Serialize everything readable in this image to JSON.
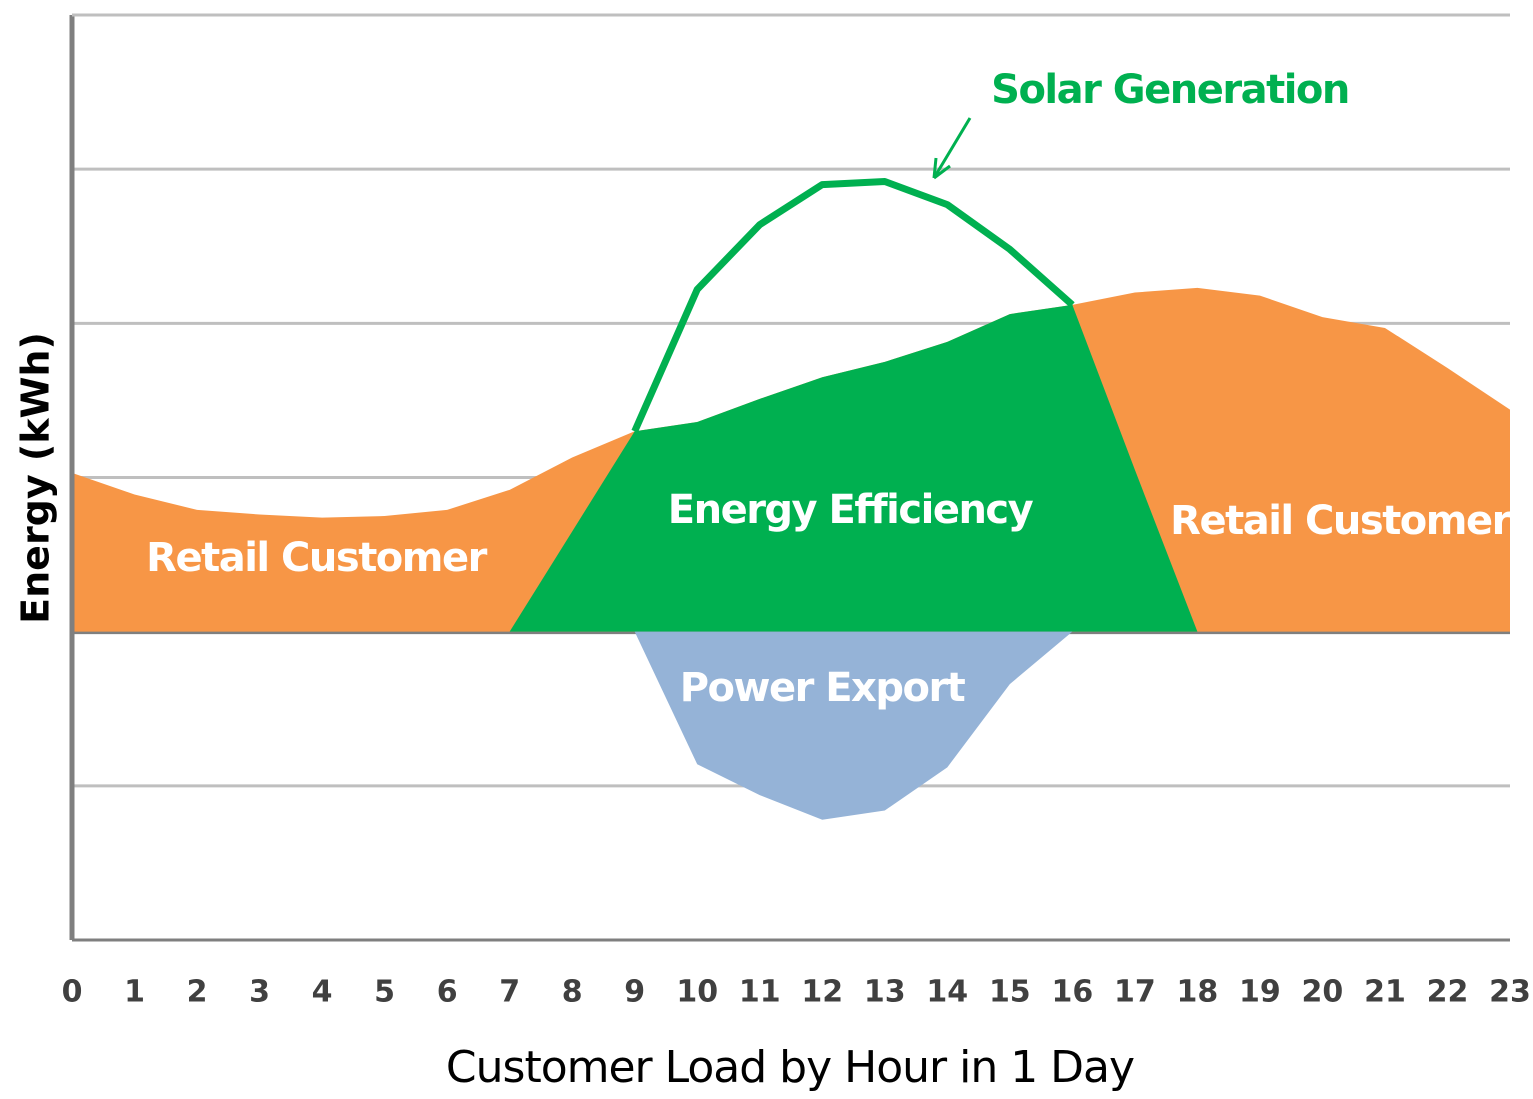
{
  "chart_data": {
    "type": "area",
    "x_label": "Customer Load by Hour in 1 Day",
    "y_label": "Energy (kWh)",
    "x": [
      0,
      1,
      2,
      3,
      4,
      5,
      6,
      7,
      8,
      9,
      10,
      11,
      12,
      13,
      14,
      15,
      16,
      17,
      18,
      19,
      20,
      21,
      22,
      23
    ],
    "xlim": [
      0,
      23
    ],
    "ylim": [
      -2,
      4
    ],
    "ygrid": [
      -2,
      -1,
      0,
      1,
      2,
      3,
      4
    ],
    "series": [
      {
        "name": "Retail Customer",
        "color": "#f79646",
        "values": [
          1.03,
          0.89,
          0.79,
          0.76,
          0.74,
          0.75,
          0.79,
          0.92,
          1.13,
          1.3,
          1.36,
          1.51,
          1.65,
          1.75,
          1.88,
          2.06,
          2.12,
          2.2,
          2.23,
          2.18,
          2.04,
          1.97,
          1.71,
          1.44
        ]
      },
      {
        "name": "Energy Efficiency",
        "color": "#00b050",
        "values": [
          null,
          null,
          null,
          null,
          null,
          null,
          null,
          0,
          0.65,
          1.3,
          1.36,
          1.51,
          1.65,
          1.75,
          1.88,
          2.06,
          2.12,
          1.05,
          0,
          null,
          null,
          null,
          null,
          null
        ]
      },
      {
        "name": "Power Export",
        "color": "#95b3d7",
        "values": [
          null,
          null,
          null,
          null,
          null,
          null,
          null,
          null,
          null,
          0,
          -0.86,
          -1.06,
          -1.22,
          -1.16,
          -0.88,
          -0.34,
          0,
          null,
          null,
          null,
          null,
          null,
          null,
          null
        ]
      },
      {
        "name": "Solar Generation",
        "color": "#00b050",
        "line": true,
        "values": [
          null,
          null,
          null,
          null,
          null,
          null,
          null,
          null,
          null,
          1.3,
          2.22,
          2.64,
          2.9,
          2.92,
          2.77,
          2.48,
          2.12,
          null,
          null,
          null,
          null,
          null,
          null,
          null
        ]
      }
    ]
  }
}
